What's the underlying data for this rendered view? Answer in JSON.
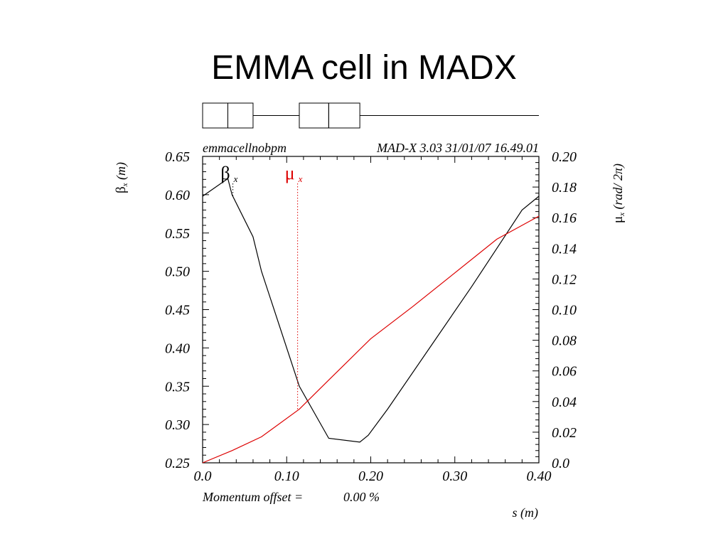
{
  "slide": {
    "title": "EMMA cell in MADX"
  },
  "header": {
    "left": "emmacellnobpm",
    "right": "MAD-X 3.03  31/01/07 16.49.01"
  },
  "footer": {
    "momentum_label": "Momentum offset =",
    "momentum_value": "0.00 %"
  },
  "lattice": [
    {
      "type": "element",
      "s_start": 0.0,
      "s_end": 0.03
    },
    {
      "type": "element",
      "s_start": 0.03,
      "s_end": 0.06
    },
    {
      "type": "drift",
      "s_start": 0.06,
      "s_end": 0.115
    },
    {
      "type": "element",
      "s_start": 0.115,
      "s_end": 0.15
    },
    {
      "type": "element",
      "s_start": 0.15,
      "s_end": 0.187
    },
    {
      "type": "drift",
      "s_start": 0.187,
      "s_end": 0.4
    }
  ],
  "chart_data": {
    "type": "line",
    "title": "",
    "xlabel": "s (m)",
    "xlim": [
      0.0,
      0.4
    ],
    "x_ticks": [
      "0.0",
      "0.10",
      "0.20",
      "0.30",
      "0.40"
    ],
    "ylabel_left": {
      "symbol": "β",
      "sub": "x",
      "rest": " (m)"
    },
    "ylim_left": [
      0.25,
      0.65
    ],
    "y_ticks_left": [
      "0.25",
      "0.30",
      "0.35",
      "0.40",
      "0.45",
      "0.50",
      "0.55",
      "0.60",
      "0.65"
    ],
    "ylabel_right": {
      "symbol": "μ",
      "sub": "x",
      "rest": " (rad/ 2π)"
    },
    "ylim_right": [
      0.0,
      0.2
    ],
    "y_ticks_right": [
      "0.0",
      "0.02",
      "0.04",
      "0.06",
      "0.08",
      "0.10",
      "0.12",
      "0.14",
      "0.16",
      "0.18",
      "0.20"
    ],
    "series": [
      {
        "name": "β",
        "sub": "x",
        "axis": "left",
        "color": "#000000",
        "marker_s": 0.036,
        "points": [
          [
            0.0,
            0.598
          ],
          [
            0.03,
            0.621
          ],
          [
            0.035,
            0.6
          ],
          [
            0.06,
            0.545
          ],
          [
            0.07,
            0.5
          ],
          [
            0.115,
            0.35
          ],
          [
            0.15,
            0.282
          ],
          [
            0.187,
            0.277
          ],
          [
            0.197,
            0.286
          ],
          [
            0.22,
            0.32
          ],
          [
            0.27,
            0.4
          ],
          [
            0.32,
            0.48
          ],
          [
            0.35,
            0.53
          ],
          [
            0.38,
            0.58
          ],
          [
            0.4,
            0.598
          ]
        ]
      },
      {
        "name": "μ",
        "sub": "x",
        "axis": "right",
        "color": "#dd0000",
        "marker_s": 0.113,
        "points": [
          [
            0.0,
            0.0
          ],
          [
            0.035,
            0.008
          ],
          [
            0.07,
            0.017
          ],
          [
            0.115,
            0.035
          ],
          [
            0.15,
            0.054
          ],
          [
            0.2,
            0.081
          ],
          [
            0.25,
            0.102
          ],
          [
            0.3,
            0.124
          ],
          [
            0.35,
            0.146
          ],
          [
            0.4,
            0.161
          ]
        ]
      }
    ]
  }
}
